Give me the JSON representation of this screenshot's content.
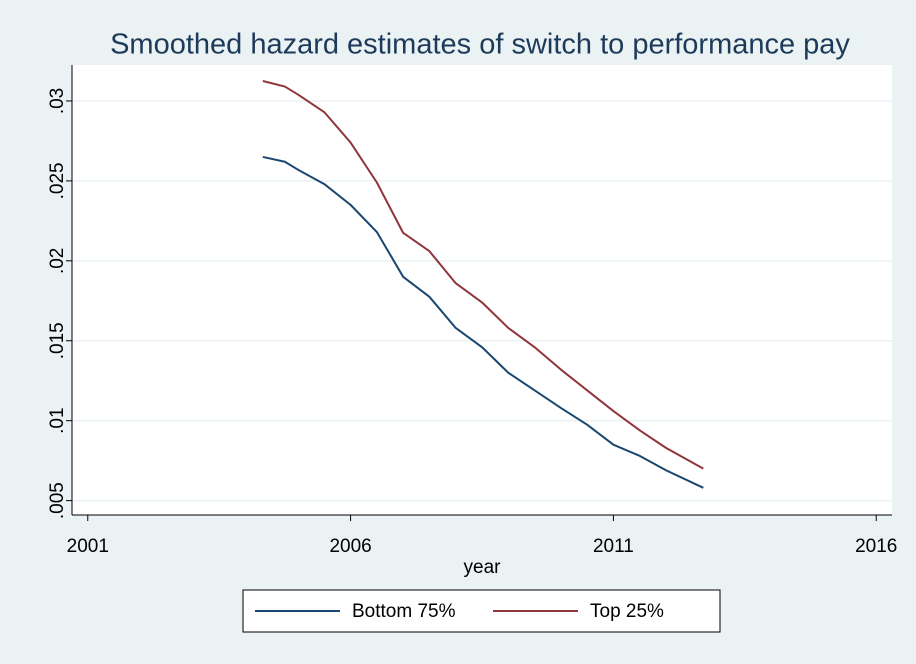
{
  "chart_data": {
    "type": "line",
    "title": "Smoothed hazard estimates of switch to performance pay",
    "xlabel": "year",
    "x": [
      2004.33,
      2004.75,
      2005,
      2005.5,
      2006,
      2006.5,
      2007,
      2007.5,
      2008,
      2008.5,
      2009,
      2009.5,
      2010,
      2010.5,
      2011,
      2011.5,
      2012,
      2012.71
    ],
    "series": [
      {
        "name": "Bottom 75%",
        "color": "#1a476f",
        "values": [
          0.0265,
          0.0262,
          0.0257,
          0.0248,
          0.0235,
          0.0218,
          0.019,
          0.01775,
          0.0158,
          0.0146,
          0.013,
          0.0119,
          0.0108,
          0.00975,
          0.0085,
          0.0078,
          0.0069,
          0.0058
        ]
      },
      {
        "name": "Top 25%",
        "color": "#90353b",
        "values": [
          0.03125,
          0.0309,
          0.0304,
          0.0293,
          0.0274,
          0.0249,
          0.02175,
          0.0206,
          0.0186,
          0.0174,
          0.0158,
          0.0146,
          0.0132,
          0.0119,
          0.0106,
          0.0094,
          0.0083,
          0.007
        ]
      }
    ],
    "xlim": [
      2000.7,
      2016.3
    ],
    "xticks": [
      2001,
      2006,
      2011,
      2016
    ],
    "ylim": [
      0.0041,
      0.03225
    ],
    "yticks": [
      {
        "value": 0.005,
        "label": ".005"
      },
      {
        "value": 0.01,
        "label": ".01"
      },
      {
        "value": 0.015,
        "label": ".015"
      },
      {
        "value": 0.02,
        "label": ".02"
      },
      {
        "value": 0.025,
        "label": ".025"
      },
      {
        "value": 0.03,
        "label": ".03"
      }
    ],
    "grid": true,
    "legend": "bottom"
  }
}
